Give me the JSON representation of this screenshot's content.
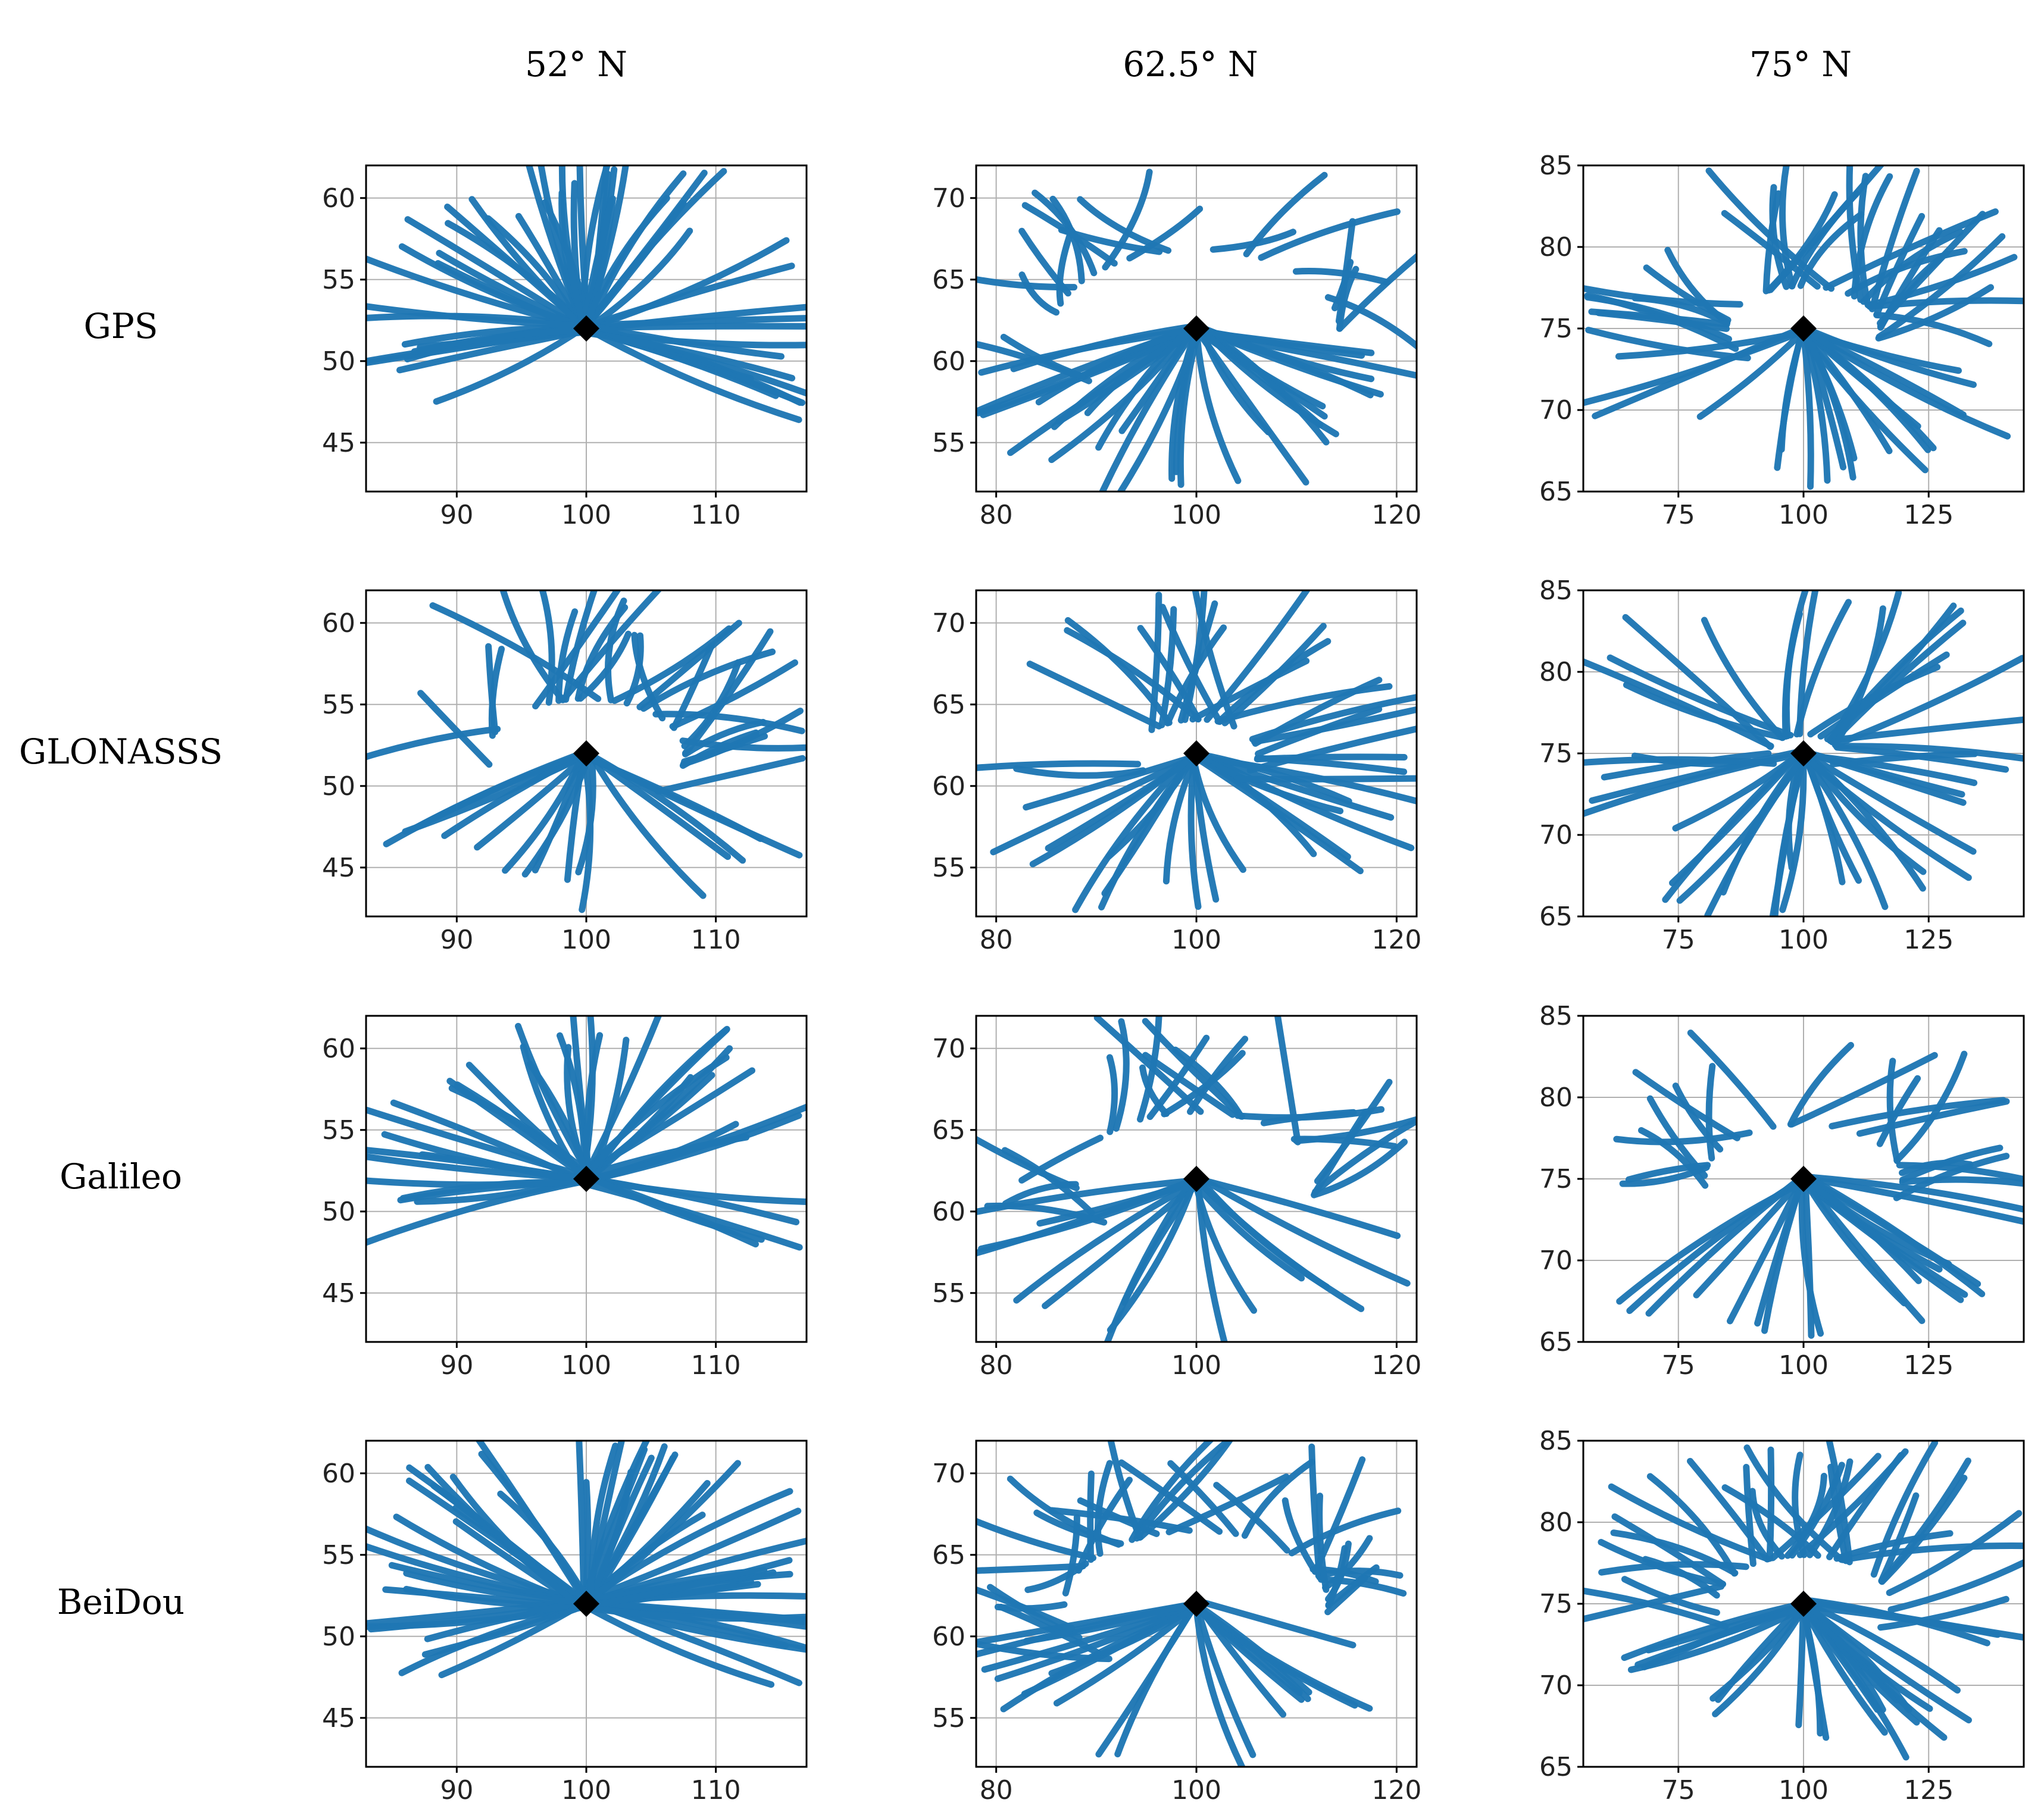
{
  "columns": [
    "52° N",
    "62.5° N",
    "75° N"
  ],
  "rows": [
    "GPS",
    "GLONASSS",
    "Galileo",
    "BeiDou"
  ],
  "colors": {
    "track": "#1f77b4",
    "station": "#000000"
  },
  "chart_data": {
    "type": "scatter",
    "description_of_grid": "4 constellations x 3 latitudes",
    "panels_columns": [
      {
        "label": "52° N",
        "station": [
          100,
          52
        ],
        "xlim": [
          83,
          117
        ],
        "ylim": [
          42,
          62
        ],
        "xticks": [
          90,
          100,
          110
        ],
        "yticks": [
          45,
          50,
          55,
          60
        ],
        "inner_radius": 2.4
      },
      {
        "label": "62.5° N",
        "station": [
          100,
          62
        ],
        "xlim": [
          78,
          122
        ],
        "ylim": [
          52,
          72
        ],
        "xticks": [
          80,
          100,
          120
        ],
        "yticks": [
          55,
          60,
          65,
          70
        ],
        "inner_radius": 2.4
      },
      {
        "label": "75° N",
        "station": [
          100,
          75
        ],
        "xlim": [
          56,
          144
        ],
        "ylim": [
          65,
          85
        ],
        "xticks": [
          75,
          100,
          125
        ],
        "yticks": [
          65,
          70,
          75,
          80,
          85
        ],
        "inner_radius": 2.4
      }
    ],
    "panels_rows": [
      {
        "label": "GPS",
        "gap_deg": [
          52,
          0,
          0
        ],
        "hole_size": [
          0,
          6.5,
          3.5
        ],
        "density": 1.0
      },
      {
        "label": "GLONASSS",
        "gap_deg": [
          0,
          0,
          0
        ],
        "hole_size": [
          4.5,
          2.8,
          1.6
        ],
        "density": 0.85
      },
      {
        "label": "Galileo",
        "gap_deg": [
          56,
          0,
          0
        ],
        "hole_size": [
          0,
          5.5,
          4.5
        ],
        "density": 0.75
      },
      {
        "label": "BeiDou",
        "gap_deg": [
          52,
          0,
          0
        ],
        "hole_size": [
          0,
          6.0,
          4.0
        ],
        "density": 1.1
      }
    ]
  }
}
